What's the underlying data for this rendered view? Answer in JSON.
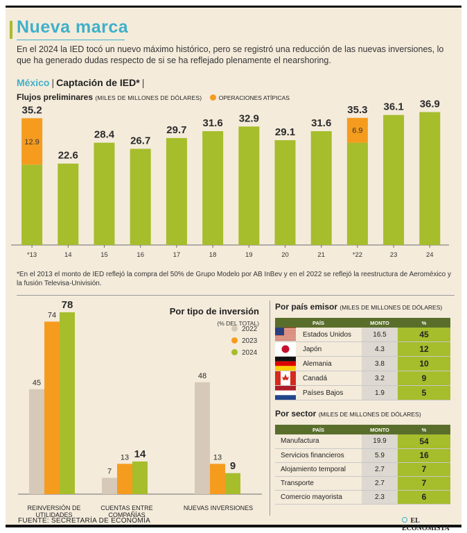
{
  "header": {
    "title": "Nueva marca",
    "intro": "En el 2024 la IED tocó un nuevo máximo histórico, pero se registró una reducción de las nuevas inversiones, lo que ha generado dudas respecto de si se ha reflejado plenamente el nearshoring."
  },
  "section": {
    "country": "México",
    "sep": "|",
    "name": "Captación de IED*",
    "trail": "|"
  },
  "flows": {
    "label": "Flujos preliminares",
    "units": "(MILES DE MILLONES DE DÓLARES)",
    "atypical_label": "OPERACIONES ATÍPICAS"
  },
  "footnote": "*En el 2013 el monto de IED reflejó la compra del 50% de Grupo Modelo por AB InBev y en el 2022 se reflejó la reestructura de Aeroméxico y la fusión Televisa-Univisión.",
  "tipo": {
    "title": "Por tipo de inversión",
    "subtitle": "(% DEL TOTAL)",
    "legend": [
      "2022",
      "2023",
      "2024"
    ]
  },
  "pais": {
    "title": "Por país emisor",
    "units": "(MILES DE MILLONES DE DÓLARES)",
    "columns": [
      "PAÍS",
      "MONTO",
      "%"
    ],
    "rows": [
      {
        "name": "Estados Unidos",
        "monto": "16.5",
        "pct": "45",
        "flag": "us-flag-icon"
      },
      {
        "name": "Japón",
        "monto": "4.3",
        "pct": "12",
        "flag": "japan-flag-icon"
      },
      {
        "name": "Alemania",
        "monto": "3.8",
        "pct": "10",
        "flag": "germany-flag-icon"
      },
      {
        "name": "Canadá",
        "monto": "3.2",
        "pct": "9",
        "flag": "canada-flag-icon"
      },
      {
        "name": "Países Bajos",
        "monto": "1.9",
        "pct": "5",
        "flag": "netherlands-flag-icon"
      }
    ]
  },
  "sector": {
    "title": "Por sector",
    "units": "(MILES DE MILLONES DE DÓLARES)",
    "columns": [
      "PAÍS",
      "MONTO",
      "%"
    ],
    "rows": [
      {
        "name": "Manufactura",
        "monto": "19.9",
        "pct": "54"
      },
      {
        "name": "Servicios financieros",
        "monto": "5.9",
        "pct": "16"
      },
      {
        "name": "Alojamiento temporal",
        "monto": "2.7",
        "pct": "7"
      },
      {
        "name": "Transporte",
        "monto": "2.7",
        "pct": "7"
      },
      {
        "name": "Comercio mayorista",
        "monto": "2.3",
        "pct": "6"
      }
    ]
  },
  "source": "FUENTE: SECRETARÍA DE ECONOMÍA",
  "brand": "EL ECONOMISTA",
  "colors": {
    "green": "#a6bd2c",
    "orange": "#f59c1f",
    "beige": "#d7c9b8",
    "blue": "#3fb0c9",
    "background": "#f4ebdb"
  },
  "chart_data": [
    {
      "type": "bar",
      "stacked": true,
      "categories": [
        "*13",
        "14",
        "15",
        "16",
        "17",
        "18",
        "19",
        "20",
        "21",
        "*22",
        "23",
        "24"
      ],
      "totals": [
        "35.2",
        "22.6",
        "28.4",
        "26.7",
        "29.7",
        "31.6",
        "32.9",
        "29.1",
        "31.6",
        "35.3",
        "36.1",
        "36.9"
      ],
      "series": [
        {
          "values": [
            22.3,
            22.6,
            28.4,
            26.7,
            29.7,
            31.6,
            32.9,
            29.1,
            31.6,
            28.4,
            36.1,
            36.9
          ]
        },
        {
          "name": "OPERACIONES ATÍPICAS",
          "values": [
            12.9,
            0,
            0,
            0,
            0,
            0,
            0,
            0,
            0,
            6.9,
            0,
            0
          ],
          "labels": [
            "12.9",
            "",
            "",
            "",
            "",
            "",
            "",
            "",
            "",
            "6.9",
            "",
            ""
          ]
        }
      ],
      "ylim": [
        0,
        40
      ],
      "grid": false
    },
    {
      "type": "bar",
      "categories": [
        "REINVERSIÓN DE UTILIDADES",
        "CUENTAS ENTRE COMPAÑÍAS",
        "NUEVAS INVERSIONES"
      ],
      "series": [
        {
          "name": "2022",
          "values": [
            45,
            7,
            48
          ]
        },
        {
          "name": "2023",
          "values": [
            74,
            13,
            13
          ]
        },
        {
          "name": "2024",
          "values": [
            78,
            14,
            9
          ]
        }
      ],
      "ylim": [
        0,
        80
      ],
      "legend": "top-right"
    }
  ]
}
